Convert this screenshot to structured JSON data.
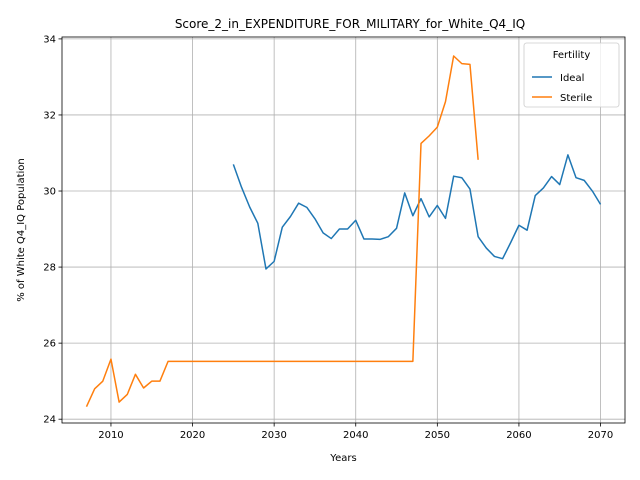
{
  "chart_data": {
    "type": "line",
    "title": "Score_2_in_EXPENDITURE_FOR_MILITARY_for_White_Q4_IQ",
    "xlabel": "Years",
    "ylabel": "% of White Q4_IQ Population",
    "xlim": [
      2004,
      2073
    ],
    "ylim": [
      23.9,
      34.05
    ],
    "xticks": [
      2010,
      2020,
      2030,
      2040,
      2050,
      2060,
      2070
    ],
    "yticks": [
      24,
      26,
      28,
      30,
      32,
      34
    ],
    "grid": true,
    "legend": {
      "title": "Fertility",
      "position": "top-right"
    },
    "series": [
      {
        "name": "Ideal",
        "color": "#1f77b4",
        "x": [
          2025,
          2026,
          2027,
          2028,
          2029,
          2030,
          2031,
          2032,
          2033,
          2034,
          2035,
          2036,
          2037,
          2038,
          2039,
          2040,
          2041,
          2042,
          2043,
          2044,
          2045,
          2046,
          2047,
          2048,
          2049,
          2050,
          2051,
          2052,
          2053,
          2054,
          2055,
          2056,
          2057,
          2058,
          2059,
          2060,
          2061,
          2062,
          2063,
          2064,
          2065,
          2066,
          2067,
          2068,
          2069,
          2070
        ],
        "y": [
          30.7,
          30.1,
          29.58,
          29.15,
          27.95,
          28.15,
          29.05,
          29.33,
          29.68,
          29.57,
          29.27,
          28.9,
          28.75,
          29.0,
          29.0,
          29.23,
          28.74,
          28.74,
          28.73,
          28.8,
          29.02,
          29.95,
          29.35,
          29.8,
          29.32,
          29.62,
          29.28,
          30.39,
          30.35,
          30.05,
          28.8,
          28.5,
          28.28,
          28.22,
          28.65,
          29.1,
          28.97,
          29.88,
          30.08,
          30.38,
          30.17,
          30.95,
          30.35,
          30.28,
          30.0,
          29.65
        ]
      },
      {
        "name": "Sterile",
        "color": "#ff7f0e",
        "x": [
          2007,
          2008,
          2009,
          2010,
          2011,
          2012,
          2013,
          2014,
          2015,
          2016,
          2017,
          2018,
          2019,
          2020,
          2021,
          2022,
          2023,
          2024,
          2025,
          2026,
          2027,
          2028,
          2029,
          2030,
          2031,
          2032,
          2033,
          2034,
          2035,
          2036,
          2037,
          2038,
          2039,
          2040,
          2041,
          2042,
          2043,
          2044,
          2045,
          2046,
          2047,
          2048,
          2049,
          2050,
          2051,
          2052,
          2053,
          2054,
          2055
        ],
        "y": [
          24.33,
          24.8,
          25.0,
          25.58,
          24.45,
          24.65,
          25.18,
          24.82,
          25.0,
          25.0,
          25.52,
          25.52,
          25.52,
          25.52,
          25.52,
          25.52,
          25.52,
          25.52,
          25.52,
          25.52,
          25.52,
          25.52,
          25.52,
          25.52,
          25.52,
          25.52,
          25.52,
          25.52,
          25.52,
          25.52,
          25.52,
          25.52,
          25.52,
          25.52,
          25.52,
          25.52,
          25.52,
          25.52,
          25.52,
          25.52,
          25.52,
          31.25,
          31.45,
          31.68,
          32.35,
          33.55,
          33.35,
          33.33,
          30.82
        ]
      }
    ]
  }
}
